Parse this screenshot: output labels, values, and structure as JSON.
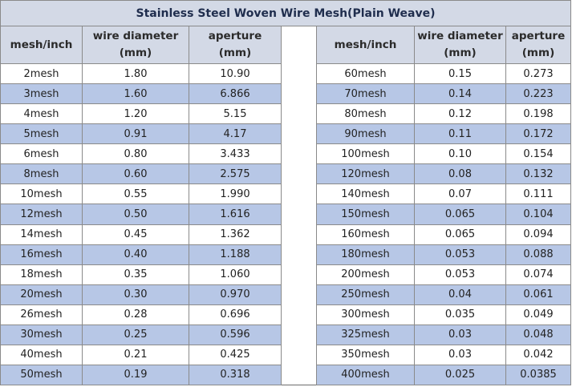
{
  "title": "Stainless Steel Woven Wire Mesh(Plain Weave)",
  "headers": {
    "mesh": "mesh/inch",
    "wire_line1": "wire diameter",
    "wire_line2": "(mm)",
    "aperture_line1": "aperture",
    "aperture_line2": "(mm)"
  },
  "left_rows": [
    {
      "mesh": "2mesh",
      "wire": "1.80",
      "aperture": "10.90"
    },
    {
      "mesh": "3mesh",
      "wire": "1.60",
      "aperture": "6.866"
    },
    {
      "mesh": "4mesh",
      "wire": "1.20",
      "aperture": "5.15"
    },
    {
      "mesh": "5mesh",
      "wire": "0.91",
      "aperture": "4.17"
    },
    {
      "mesh": "6mesh",
      "wire": "0.80",
      "aperture": "3.433"
    },
    {
      "mesh": "8mesh",
      "wire": "0.60",
      "aperture": "2.575"
    },
    {
      "mesh": "10mesh",
      "wire": "0.55",
      "aperture": "1.990"
    },
    {
      "mesh": "12mesh",
      "wire": "0.50",
      "aperture": "1.616"
    },
    {
      "mesh": "14mesh",
      "wire": "0.45",
      "aperture": "1.362"
    },
    {
      "mesh": "16mesh",
      "wire": "0.40",
      "aperture": "1.188"
    },
    {
      "mesh": "18mesh",
      "wire": "0.35",
      "aperture": "1.060"
    },
    {
      "mesh": "20mesh",
      "wire": "0.30",
      "aperture": "0.970"
    },
    {
      "mesh": "26mesh",
      "wire": "0.28",
      "aperture": "0.696"
    },
    {
      "mesh": "30mesh",
      "wire": "0.25",
      "aperture": "0.596"
    },
    {
      "mesh": "40mesh",
      "wire": "0.21",
      "aperture": "0.425"
    },
    {
      "mesh": "50mesh",
      "wire": "0.19",
      "aperture": "0.318"
    }
  ],
  "right_rows": [
    {
      "mesh": "60mesh",
      "wire": "0.15",
      "aperture": "0.273"
    },
    {
      "mesh": "70mesh",
      "wire": "0.14",
      "aperture": "0.223"
    },
    {
      "mesh": "80mesh",
      "wire": "0.12",
      "aperture": "0.198"
    },
    {
      "mesh": "90mesh",
      "wire": "0.11",
      "aperture": "0.172"
    },
    {
      "mesh": "100mesh",
      "wire": "0.10",
      "aperture": "0.154"
    },
    {
      "mesh": "120mesh",
      "wire": "0.08",
      "aperture": "0.132"
    },
    {
      "mesh": "140mesh",
      "wire": "0.07",
      "aperture": "0.111"
    },
    {
      "mesh": "150mesh",
      "wire": "0.065",
      "aperture": "0.104"
    },
    {
      "mesh": "160mesh",
      "wire": "0.065",
      "aperture": "0.094"
    },
    {
      "mesh": "180mesh",
      "wire": "0.053",
      "aperture": "0.088"
    },
    {
      "mesh": "200mesh",
      "wire": "0.053",
      "aperture": "0.074"
    },
    {
      "mesh": "250mesh",
      "wire": "0.04",
      "aperture": "0.061"
    },
    {
      "mesh": "300mesh",
      "wire": "0.035",
      "aperture": "0.049"
    },
    {
      "mesh": "325mesh",
      "wire": "0.03",
      "aperture": "0.048"
    },
    {
      "mesh": "350mesh",
      "wire": "0.03",
      "aperture": "0.042"
    },
    {
      "mesh": "400mesh",
      "wire": "0.025",
      "aperture": "0.0385"
    }
  ],
  "colors": {
    "header_bg": "#d3d9e6",
    "row_stripe": "#b7c7e6",
    "title_text": "#1f2d4d"
  }
}
